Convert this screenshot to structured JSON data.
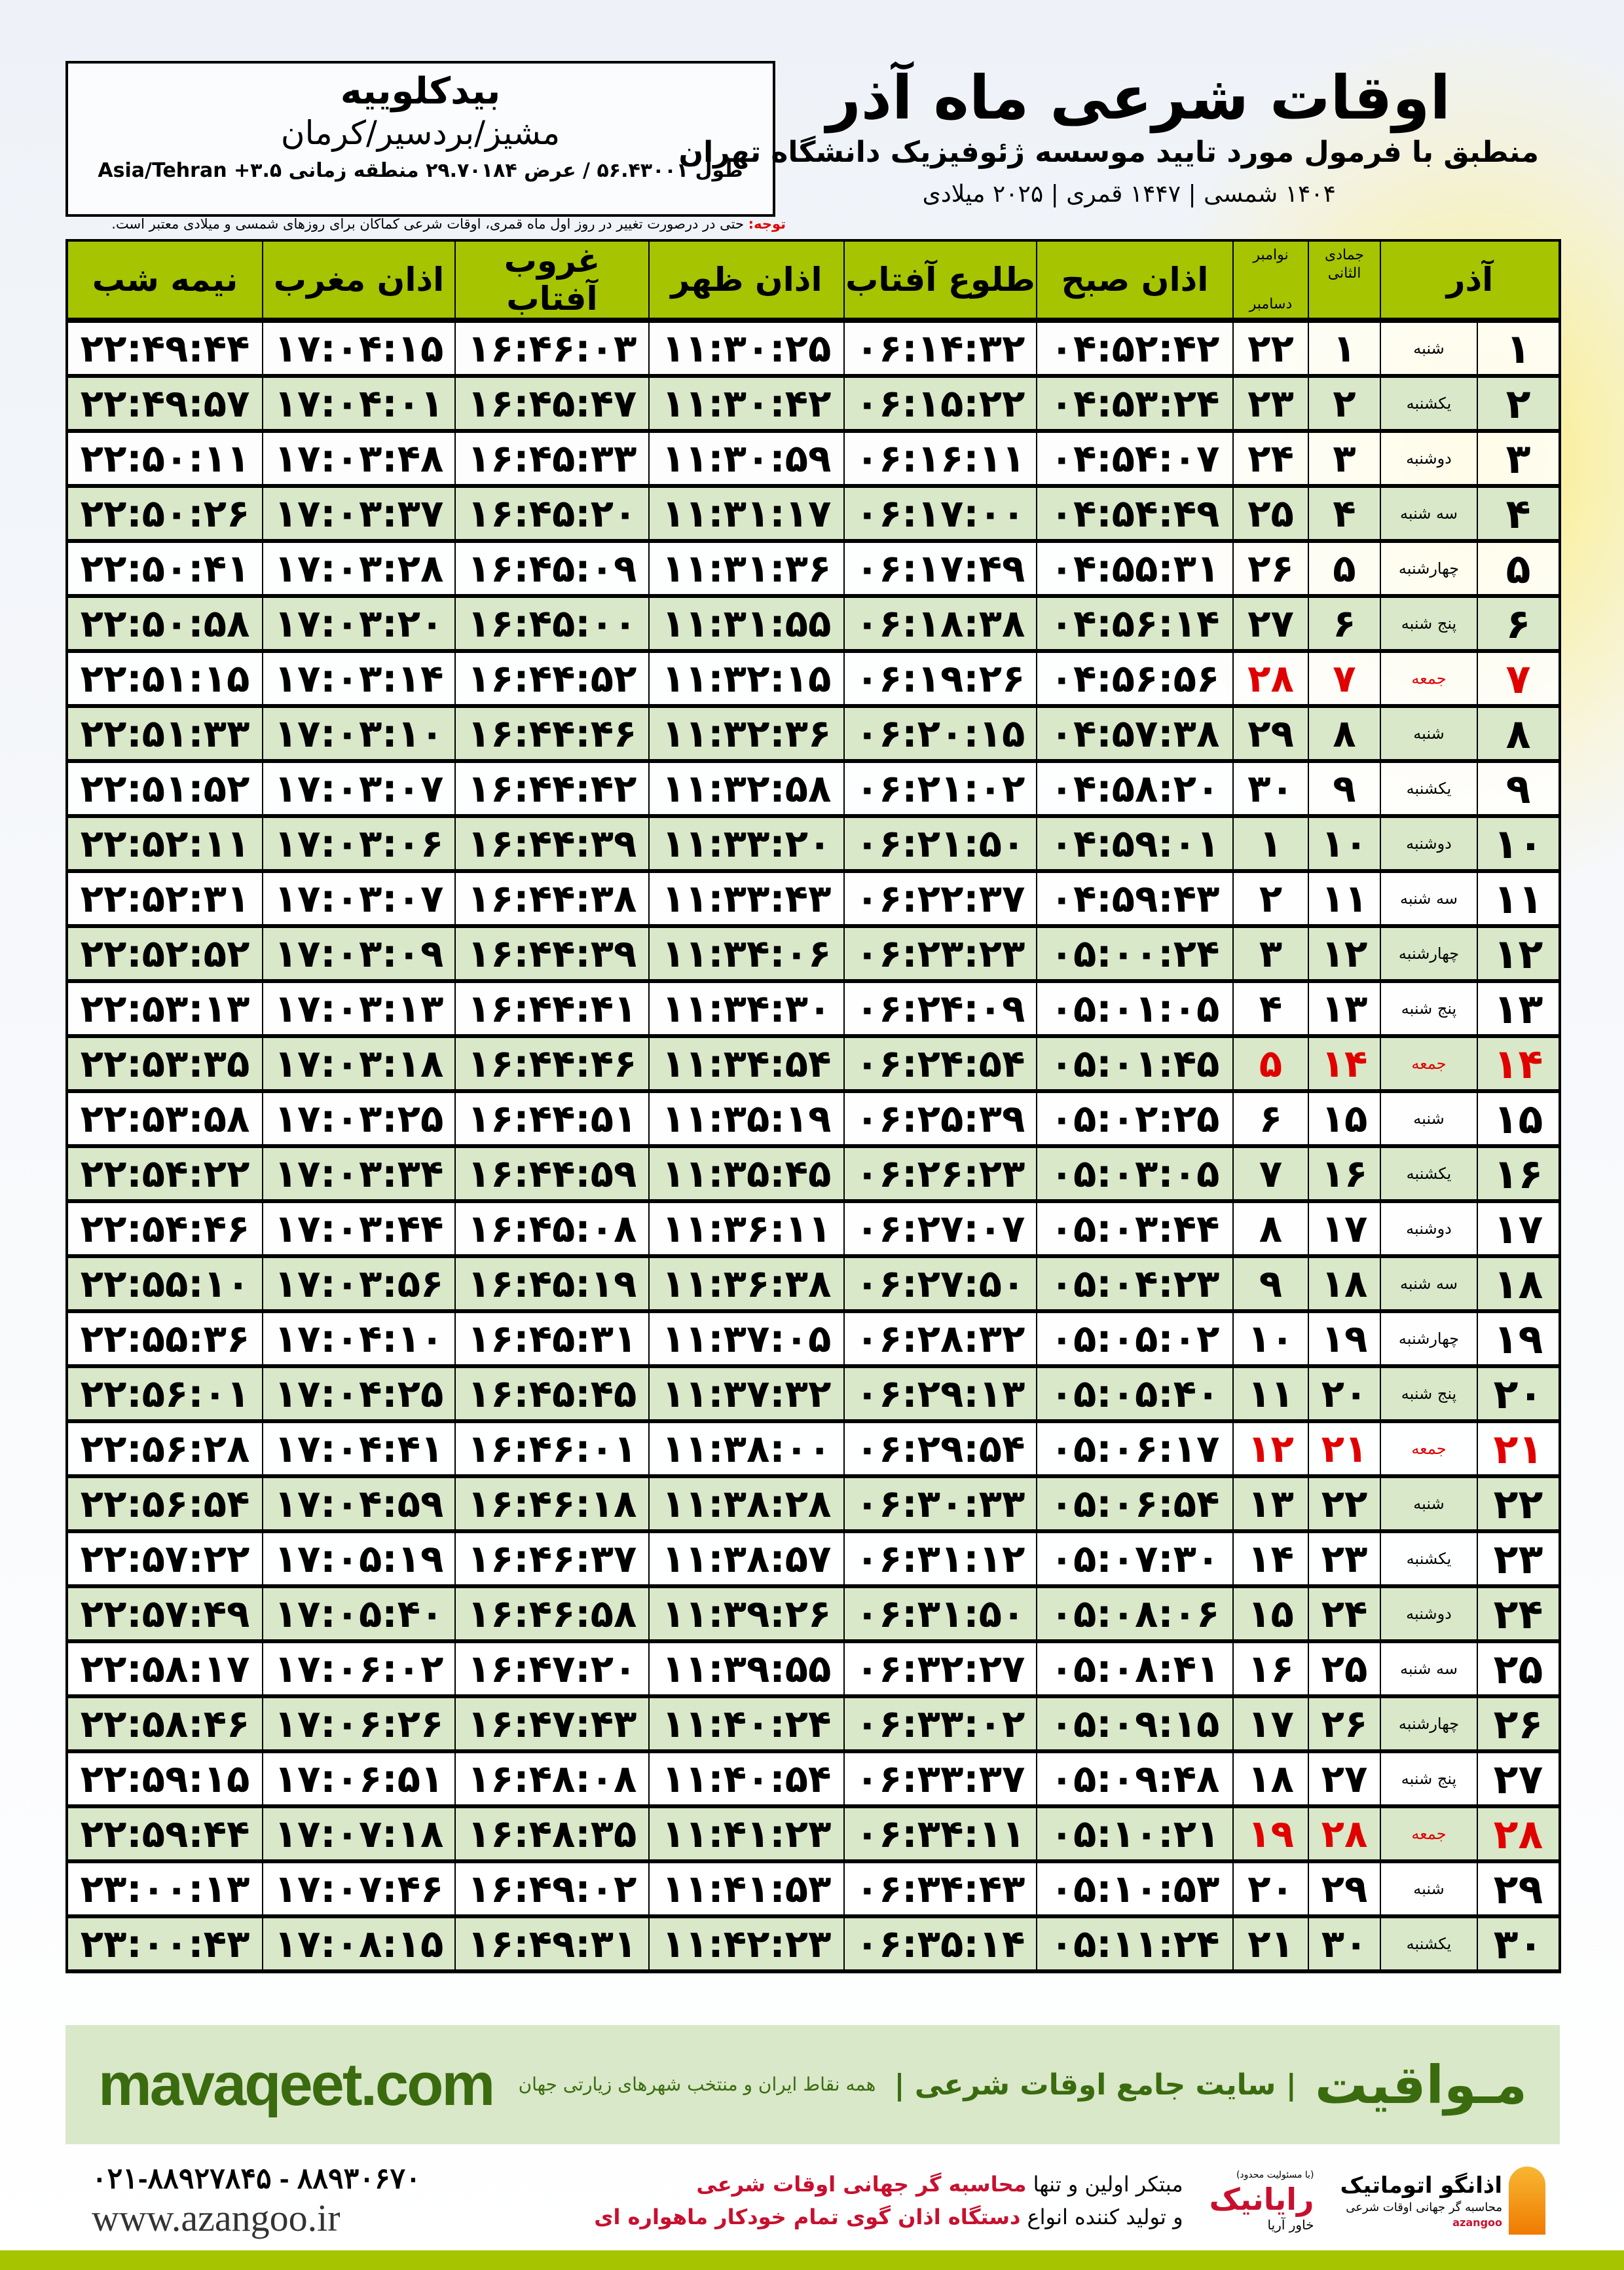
{
  "header": {
    "title": "اوقات شرعی ماه آذر",
    "subtitle": "منطبق با فرمول مورد تایید موسسه ژئوفیزیک دانشگاه تهران",
    "years": "۱۴۰۴ شمسی | ۱۴۴۷ قمری | ۲۰۲۵ میلادی"
  },
  "location": {
    "name": "بیدکلوییه",
    "region": "مشیز/بردسیر/کرمان",
    "coords": "طول ۵۶.۴۳۰۰۱ / عرض ۲۹.۷۰۱۸۴ منطقه زمانی ۳.۵+ Asia/Tehran"
  },
  "note": {
    "label": "توجه:",
    "text": " حتی در درصورت تغییر در روز اول ماه قمری، اوقات شرعی کماکان برای روزهای شمسی و میلادی معتبر است."
  },
  "table": {
    "headers": {
      "azar": "آذر",
      "hijri_top": "جمادی الثانی",
      "greg_top": "نوامبر",
      "greg_bottom": "دسامبر",
      "fajr": "اذان صبح",
      "sunrise": "طلوع آفتاب",
      "dhuhr": "اذان ظهر",
      "sunset": "غروب آفتاب",
      "maghrib": "اذان مغرب",
      "midnight": "نیمه شب"
    },
    "holiday_color": "#e00000",
    "header_color": "#a6c400",
    "alt_row_color": "#d9e8c8",
    "rows": [
      {
        "azar": "۱",
        "weekday": "شنبه",
        "hijri": "۱",
        "greg": "۲۲",
        "fajr": "۰۴:۵۲:۴۲",
        "sunrise": "۰۶:۱۴:۳۲",
        "dhuhr": "۱۱:۳۰:۲۵",
        "sunset": "۱۶:۴۶:۰۳",
        "maghrib": "۱۷:۰۴:۱۵",
        "midnight": "۲۲:۴۹:۴۴",
        "holiday": false
      },
      {
        "azar": "۲",
        "weekday": "یکشنبه",
        "hijri": "۲",
        "greg": "۲۳",
        "fajr": "۰۴:۵۳:۲۴",
        "sunrise": "۰۶:۱۵:۲۲",
        "dhuhr": "۱۱:۳۰:۴۲",
        "sunset": "۱۶:۴۵:۴۷",
        "maghrib": "۱۷:۰۴:۰۱",
        "midnight": "۲۲:۴۹:۵۷",
        "holiday": false
      },
      {
        "azar": "۳",
        "weekday": "دوشنبه",
        "hijri": "۳",
        "greg": "۲۴",
        "fajr": "۰۴:۵۴:۰۷",
        "sunrise": "۰۶:۱۶:۱۱",
        "dhuhr": "۱۱:۳۰:۵۹",
        "sunset": "۱۶:۴۵:۳۳",
        "maghrib": "۱۷:۰۳:۴۸",
        "midnight": "۲۲:۵۰:۱۱",
        "holiday": false
      },
      {
        "azar": "۴",
        "weekday": "سه شنبه",
        "hijri": "۴",
        "greg": "۲۵",
        "fajr": "۰۴:۵۴:۴۹",
        "sunrise": "۰۶:۱۷:۰۰",
        "dhuhr": "۱۱:۳۱:۱۷",
        "sunset": "۱۶:۴۵:۲۰",
        "maghrib": "۱۷:۰۳:۳۷",
        "midnight": "۲۲:۵۰:۲۶",
        "holiday": false
      },
      {
        "azar": "۵",
        "weekday": "چهارشنبه",
        "hijri": "۵",
        "greg": "۲۶",
        "fajr": "۰۴:۵۵:۳۱",
        "sunrise": "۰۶:۱۷:۴۹",
        "dhuhr": "۱۱:۳۱:۳۶",
        "sunset": "۱۶:۴۵:۰۹",
        "maghrib": "۱۷:۰۳:۲۸",
        "midnight": "۲۲:۵۰:۴۱",
        "holiday": false
      },
      {
        "azar": "۶",
        "weekday": "پنج شنبه",
        "hijri": "۶",
        "greg": "۲۷",
        "fajr": "۰۴:۵۶:۱۴",
        "sunrise": "۰۶:۱۸:۳۸",
        "dhuhr": "۱۱:۳۱:۵۵",
        "sunset": "۱۶:۴۵:۰۰",
        "maghrib": "۱۷:۰۳:۲۰",
        "midnight": "۲۲:۵۰:۵۸",
        "holiday": false
      },
      {
        "azar": "۷",
        "weekday": "جمعه",
        "hijri": "۷",
        "greg": "۲۸",
        "fajr": "۰۴:۵۶:۵۶",
        "sunrise": "۰۶:۱۹:۲۶",
        "dhuhr": "۱۱:۳۲:۱۵",
        "sunset": "۱۶:۴۴:۵۲",
        "maghrib": "۱۷:۰۳:۱۴",
        "midnight": "۲۲:۵۱:۱۵",
        "holiday": true
      },
      {
        "azar": "۸",
        "weekday": "شنبه",
        "hijri": "۸",
        "greg": "۲۹",
        "fajr": "۰۴:۵۷:۳۸",
        "sunrise": "۰۶:۲۰:۱۵",
        "dhuhr": "۱۱:۳۲:۳۶",
        "sunset": "۱۶:۴۴:۴۶",
        "maghrib": "۱۷:۰۳:۱۰",
        "midnight": "۲۲:۵۱:۳۳",
        "holiday": false
      },
      {
        "azar": "۹",
        "weekday": "یکشنبه",
        "hijri": "۹",
        "greg": "۳۰",
        "fajr": "۰۴:۵۸:۲۰",
        "sunrise": "۰۶:۲۱:۰۲",
        "dhuhr": "۱۱:۳۲:۵۸",
        "sunset": "۱۶:۴۴:۴۲",
        "maghrib": "۱۷:۰۳:۰۷",
        "midnight": "۲۲:۵۱:۵۲",
        "holiday": false
      },
      {
        "azar": "۱۰",
        "weekday": "دوشنبه",
        "hijri": "۱۰",
        "greg": "۱",
        "fajr": "۰۴:۵۹:۰۱",
        "sunrise": "۰۶:۲۱:۵۰",
        "dhuhr": "۱۱:۳۳:۲۰",
        "sunset": "۱۶:۴۴:۳۹",
        "maghrib": "۱۷:۰۳:۰۶",
        "midnight": "۲۲:۵۲:۱۱",
        "holiday": false
      },
      {
        "azar": "۱۱",
        "weekday": "سه شنبه",
        "hijri": "۱۱",
        "greg": "۲",
        "fajr": "۰۴:۵۹:۴۳",
        "sunrise": "۰۶:۲۲:۳۷",
        "dhuhr": "۱۱:۳۳:۴۳",
        "sunset": "۱۶:۴۴:۳۸",
        "maghrib": "۱۷:۰۳:۰۷",
        "midnight": "۲۲:۵۲:۳۱",
        "holiday": false
      },
      {
        "azar": "۱۲",
        "weekday": "چهارشنبه",
        "hijri": "۱۲",
        "greg": "۳",
        "fajr": "۰۵:۰۰:۲۴",
        "sunrise": "۰۶:۲۳:۲۳",
        "dhuhr": "۱۱:۳۴:۰۶",
        "sunset": "۱۶:۴۴:۳۹",
        "maghrib": "۱۷:۰۳:۰۹",
        "midnight": "۲۲:۵۲:۵۲",
        "holiday": false
      },
      {
        "azar": "۱۳",
        "weekday": "پنج شنبه",
        "hijri": "۱۳",
        "greg": "۴",
        "fajr": "۰۵:۰۱:۰۵",
        "sunrise": "۰۶:۲۴:۰۹",
        "dhuhr": "۱۱:۳۴:۳۰",
        "sunset": "۱۶:۴۴:۴۱",
        "maghrib": "۱۷:۰۳:۱۳",
        "midnight": "۲۲:۵۳:۱۳",
        "holiday": false
      },
      {
        "azar": "۱۴",
        "weekday": "جمعه",
        "hijri": "۱۴",
        "greg": "۵",
        "fajr": "۰۵:۰۱:۴۵",
        "sunrise": "۰۶:۲۴:۵۴",
        "dhuhr": "۱۱:۳۴:۵۴",
        "sunset": "۱۶:۴۴:۴۶",
        "maghrib": "۱۷:۰۳:۱۸",
        "midnight": "۲۲:۵۳:۳۵",
        "holiday": true
      },
      {
        "azar": "۱۵",
        "weekday": "شنبه",
        "hijri": "۱۵",
        "greg": "۶",
        "fajr": "۰۵:۰۲:۲۵",
        "sunrise": "۰۶:۲۵:۳۹",
        "dhuhr": "۱۱:۳۵:۱۹",
        "sunset": "۱۶:۴۴:۵۱",
        "maghrib": "۱۷:۰۳:۲۵",
        "midnight": "۲۲:۵۳:۵۸",
        "holiday": false
      },
      {
        "azar": "۱۶",
        "weekday": "یکشنبه",
        "hijri": "۱۶",
        "greg": "۷",
        "fajr": "۰۵:۰۳:۰۵",
        "sunrise": "۰۶:۲۶:۲۳",
        "dhuhr": "۱۱:۳۵:۴۵",
        "sunset": "۱۶:۴۴:۵۹",
        "maghrib": "۱۷:۰۳:۳۴",
        "midnight": "۲۲:۵۴:۲۲",
        "holiday": false
      },
      {
        "azar": "۱۷",
        "weekday": "دوشنبه",
        "hijri": "۱۷",
        "greg": "۸",
        "fajr": "۰۵:۰۳:۴۴",
        "sunrise": "۰۶:۲۷:۰۷",
        "dhuhr": "۱۱:۳۶:۱۱",
        "sunset": "۱۶:۴۵:۰۸",
        "maghrib": "۱۷:۰۳:۴۴",
        "midnight": "۲۲:۵۴:۴۶",
        "holiday": false
      },
      {
        "azar": "۱۸",
        "weekday": "سه شنبه",
        "hijri": "۱۸",
        "greg": "۹",
        "fajr": "۰۵:۰۴:۲۳",
        "sunrise": "۰۶:۲۷:۵۰",
        "dhuhr": "۱۱:۳۶:۳۸",
        "sunset": "۱۶:۴۵:۱۹",
        "maghrib": "۱۷:۰۳:۵۶",
        "midnight": "۲۲:۵۵:۱۰",
        "holiday": false
      },
      {
        "azar": "۱۹",
        "weekday": "چهارشنبه",
        "hijri": "۱۹",
        "greg": "۱۰",
        "fajr": "۰۵:۰۵:۰۲",
        "sunrise": "۰۶:۲۸:۳۲",
        "dhuhr": "۱۱:۳۷:۰۵",
        "sunset": "۱۶:۴۵:۳۱",
        "maghrib": "۱۷:۰۴:۱۰",
        "midnight": "۲۲:۵۵:۳۶",
        "holiday": false
      },
      {
        "azar": "۲۰",
        "weekday": "پنج شنبه",
        "hijri": "۲۰",
        "greg": "۱۱",
        "fajr": "۰۵:۰۵:۴۰",
        "sunrise": "۰۶:۲۹:۱۳",
        "dhuhr": "۱۱:۳۷:۳۲",
        "sunset": "۱۶:۴۵:۴۵",
        "maghrib": "۱۷:۰۴:۲۵",
        "midnight": "۲۲:۵۶:۰۱",
        "holiday": false
      },
      {
        "azar": "۲۱",
        "weekday": "جمعه",
        "hijri": "۲۱",
        "greg": "۱۲",
        "fajr": "۰۵:۰۶:۱۷",
        "sunrise": "۰۶:۲۹:۵۴",
        "dhuhr": "۱۱:۳۸:۰۰",
        "sunset": "۱۶:۴۶:۰۱",
        "maghrib": "۱۷:۰۴:۴۱",
        "midnight": "۲۲:۵۶:۲۸",
        "holiday": true
      },
      {
        "azar": "۲۲",
        "weekday": "شنبه",
        "hijri": "۲۲",
        "greg": "۱۳",
        "fajr": "۰۵:۰۶:۵۴",
        "sunrise": "۰۶:۳۰:۳۳",
        "dhuhr": "۱۱:۳۸:۲۸",
        "sunset": "۱۶:۴۶:۱۸",
        "maghrib": "۱۷:۰۴:۵۹",
        "midnight": "۲۲:۵۶:۵۴",
        "holiday": false
      },
      {
        "azar": "۲۳",
        "weekday": "یکشنبه",
        "hijri": "۲۳",
        "greg": "۱۴",
        "fajr": "۰۵:۰۷:۳۰",
        "sunrise": "۰۶:۳۱:۱۲",
        "dhuhr": "۱۱:۳۸:۵۷",
        "sunset": "۱۶:۴۶:۳۷",
        "maghrib": "۱۷:۰۵:۱۹",
        "midnight": "۲۲:۵۷:۲۲",
        "holiday": false
      },
      {
        "azar": "۲۴",
        "weekday": "دوشنبه",
        "hijri": "۲۴",
        "greg": "۱۵",
        "fajr": "۰۵:۰۸:۰۶",
        "sunrise": "۰۶:۳۱:۵۰",
        "dhuhr": "۱۱:۳۹:۲۶",
        "sunset": "۱۶:۴۶:۵۸",
        "maghrib": "۱۷:۰۵:۴۰",
        "midnight": "۲۲:۵۷:۴۹",
        "holiday": false
      },
      {
        "azar": "۲۵",
        "weekday": "سه شنبه",
        "hijri": "۲۵",
        "greg": "۱۶",
        "fajr": "۰۵:۰۸:۴۱",
        "sunrise": "۰۶:۳۲:۲۷",
        "dhuhr": "۱۱:۳۹:۵۵",
        "sunset": "۱۶:۴۷:۲۰",
        "maghrib": "۱۷:۰۶:۰۲",
        "midnight": "۲۲:۵۸:۱۷",
        "holiday": false
      },
      {
        "azar": "۲۶",
        "weekday": "چهارشنبه",
        "hijri": "۲۶",
        "greg": "۱۷",
        "fajr": "۰۵:۰۹:۱۵",
        "sunrise": "۰۶:۳۳:۰۲",
        "dhuhr": "۱۱:۴۰:۲۴",
        "sunset": "۱۶:۴۷:۴۳",
        "maghrib": "۱۷:۰۶:۲۶",
        "midnight": "۲۲:۵۸:۴۶",
        "holiday": false
      },
      {
        "azar": "۲۷",
        "weekday": "پنج شنبه",
        "hijri": "۲۷",
        "greg": "۱۸",
        "fajr": "۰۵:۰۹:۴۸",
        "sunrise": "۰۶:۳۳:۳۷",
        "dhuhr": "۱۱:۴۰:۵۴",
        "sunset": "۱۶:۴۸:۰۸",
        "maghrib": "۱۷:۰۶:۵۱",
        "midnight": "۲۲:۵۹:۱۵",
        "holiday": false
      },
      {
        "azar": "۲۸",
        "weekday": "جمعه",
        "hijri": "۲۸",
        "greg": "۱۹",
        "fajr": "۰۵:۱۰:۲۱",
        "sunrise": "۰۶:۳۴:۱۱",
        "dhuhr": "۱۱:۴۱:۲۳",
        "sunset": "۱۶:۴۸:۳۵",
        "maghrib": "۱۷:۰۷:۱۸",
        "midnight": "۲۲:۵۹:۴۴",
        "holiday": true
      },
      {
        "azar": "۲۹",
        "weekday": "شنبه",
        "hijri": "۲۹",
        "greg": "۲۰",
        "fajr": "۰۵:۱۰:۵۳",
        "sunrise": "۰۶:۳۴:۴۳",
        "dhuhr": "۱۱:۴۱:۵۳",
        "sunset": "۱۶:۴۹:۰۲",
        "maghrib": "۱۷:۰۷:۴۶",
        "midnight": "۲۳:۰۰:۱۳",
        "holiday": false
      },
      {
        "azar": "۳۰",
        "weekday": "یکشنبه",
        "hijri": "۳۰",
        "greg": "۲۱",
        "fajr": "۰۵:۱۱:۲۴",
        "sunrise": "۰۶:۳۵:۱۴",
        "dhuhr": "۱۱:۴۲:۲۳",
        "sunset": "۱۶:۴۹:۳۱",
        "maghrib": "۱۷:۰۸:۱۵",
        "midnight": "۲۳:۰۰:۴۳",
        "holiday": false
      }
    ]
  },
  "ad": {
    "brand": "مـواقیت",
    "slogan": "| سایت جامع اوقات شرعی |",
    "sub": "همه نقاط ایران و منتخب شهرهای زیارتی جهان",
    "url": "mavaqeet.com",
    "color": "#3a6b0f"
  },
  "footer": {
    "phone": "۰۲۱-۸۸۹۲۷۸۴۵ - ۸۸۹۳۰۶۷۰",
    "site": "www.azangoo.ir",
    "promo1_a": "مبتکر اولین و تنها ",
    "promo1_b": "محاسبه گر جهانی اوقات شرعی",
    "promo2_a": "و تولید کننده انواع ",
    "promo2_b": "دستگاه اذان گوی تمام خودکار ماهواره ای",
    "rayanik": "رایانیک",
    "rayanik_sub": "خاور آریا",
    "rayanik_tag": "(با مسئولیت محدود)",
    "azangoo_title": "اذانگو اتوماتیک",
    "azangoo_sub": "محاسبه گر جهانی اوقات شرعی",
    "azangoo_en": "azangoo"
  }
}
